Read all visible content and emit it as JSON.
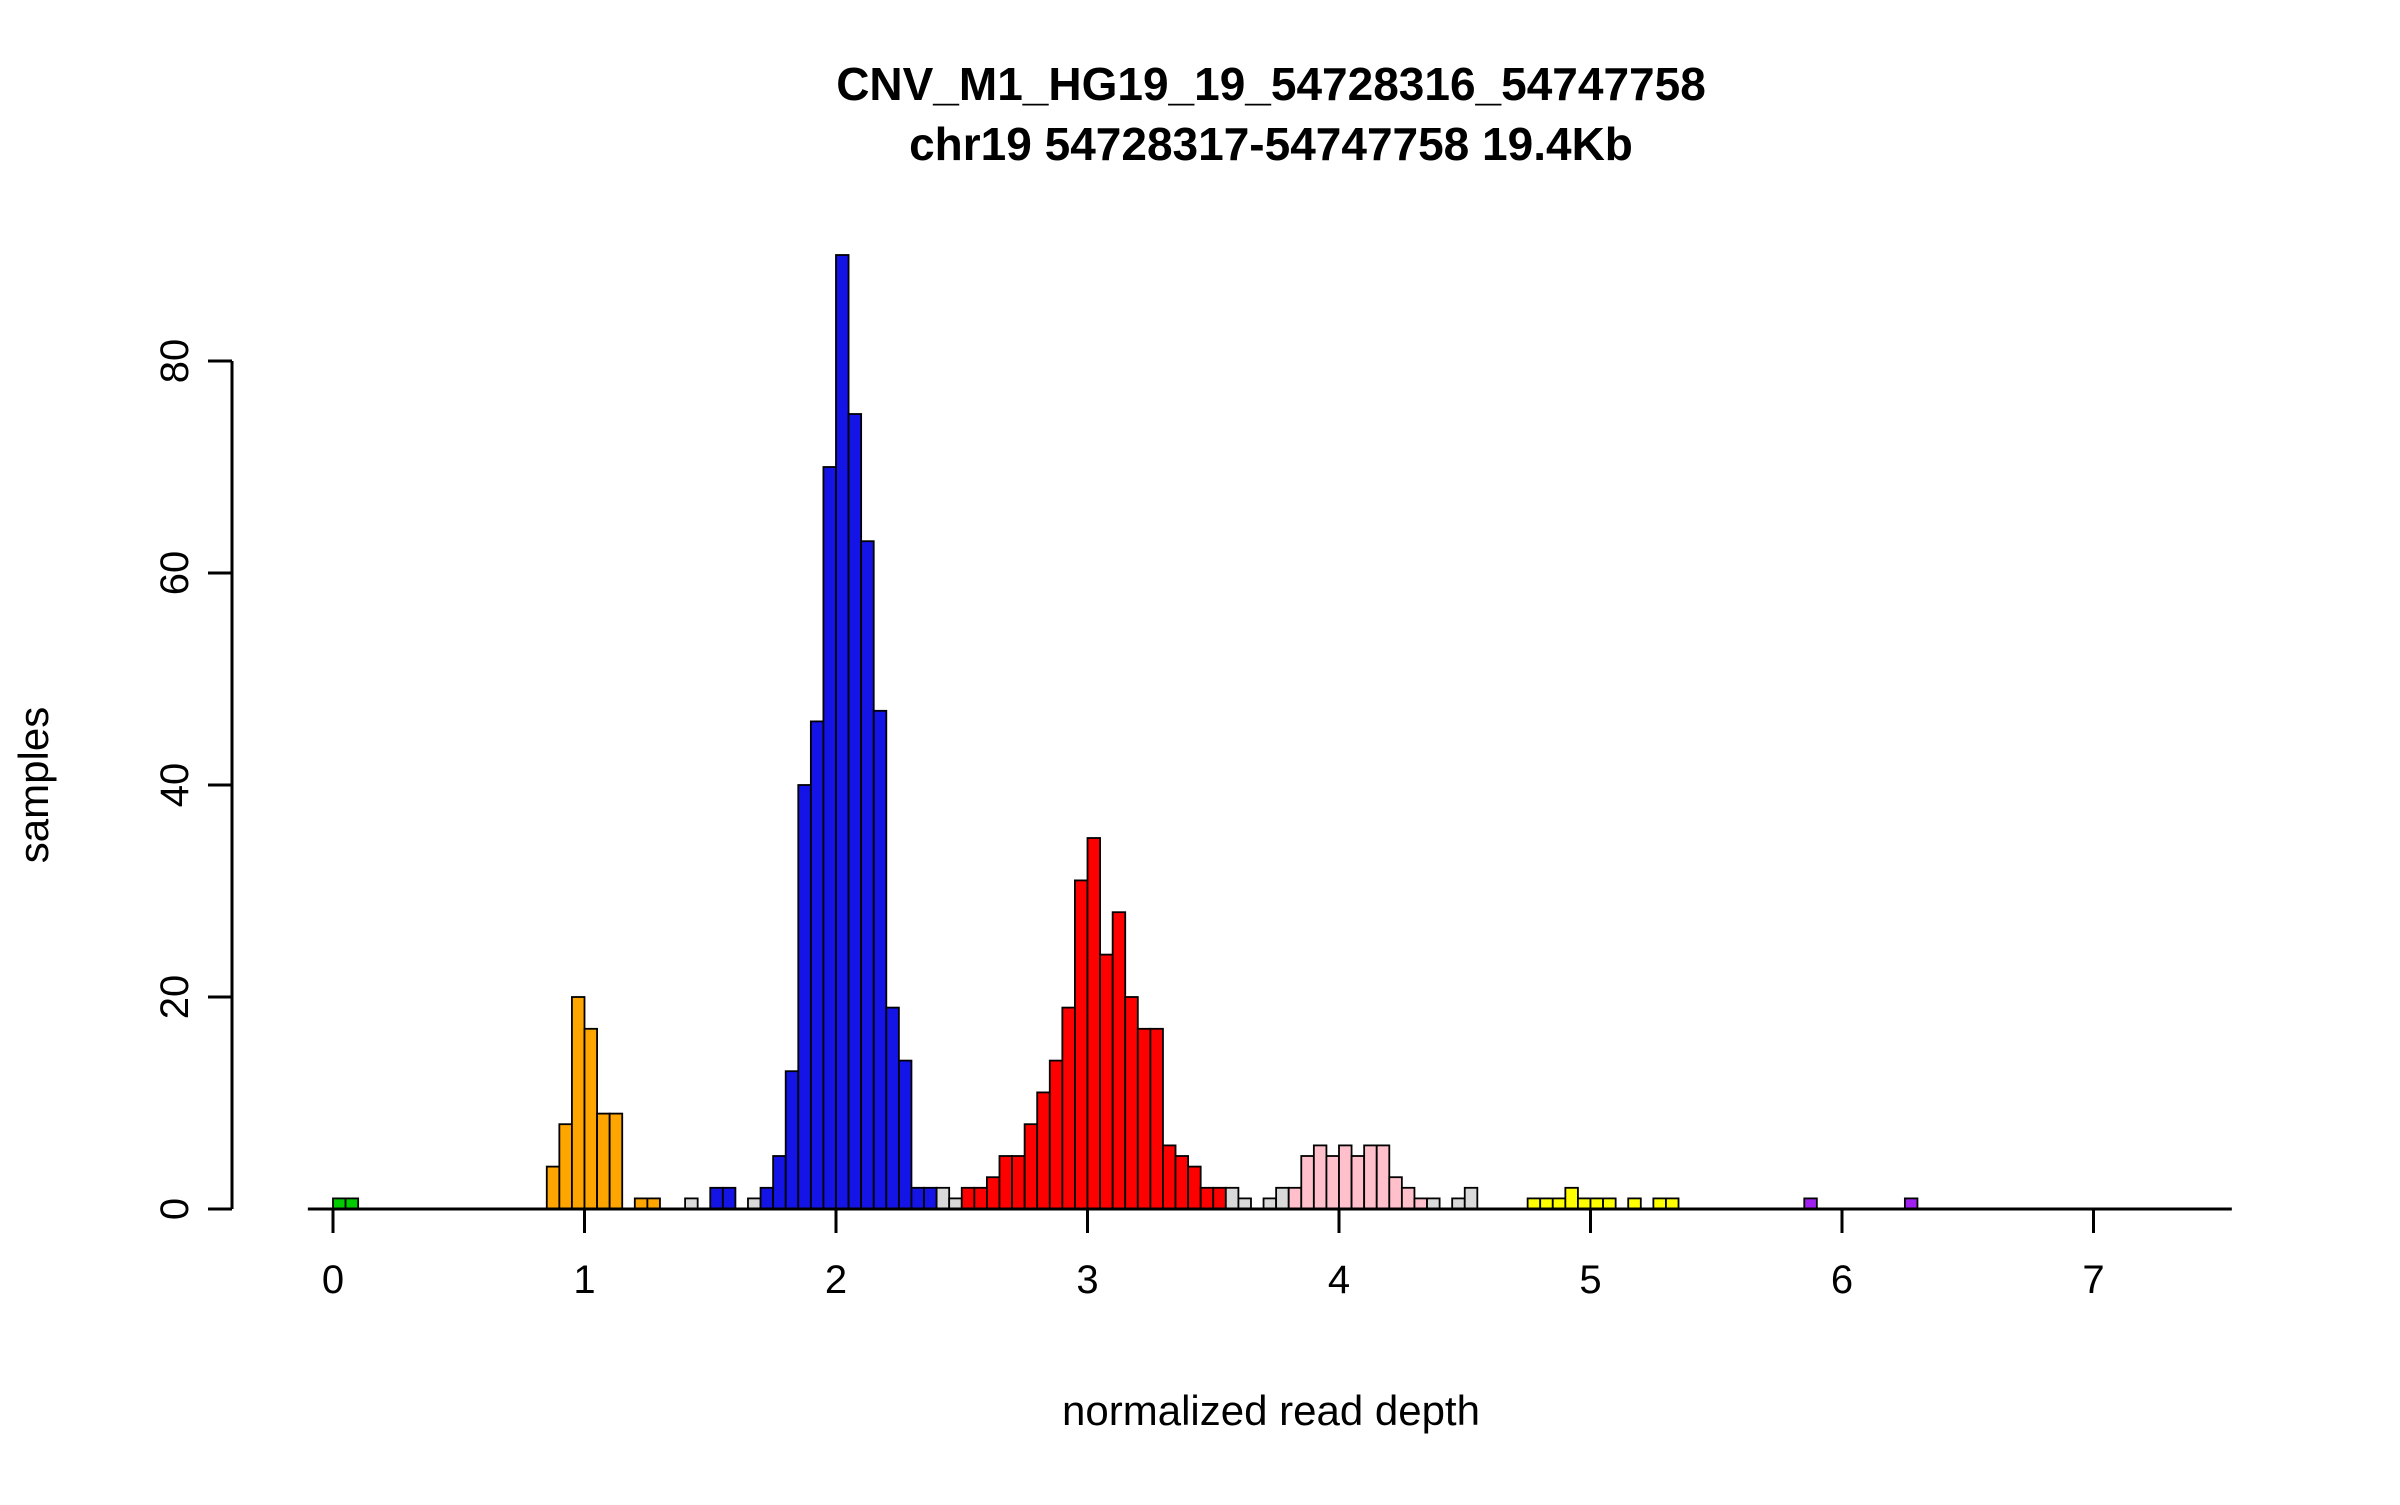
{
  "chart_data": {
    "type": "bar",
    "title": "CNV_M1_HG19_19_54728316_54747758",
    "subtitle": "chr19 54728317-54747758 19.4Kb",
    "xlabel": "normalized read depth",
    "ylabel": "samples",
    "xlim": [
      0,
      7.5
    ],
    "ylim": [
      0,
      90
    ],
    "xticks": [
      0,
      1,
      2,
      3,
      4,
      5,
      6,
      7
    ],
    "yticks": [
      0,
      20,
      40,
      60,
      80
    ],
    "bin_width": 0.05,
    "grid": false,
    "legend": "none",
    "colors": {
      "green": "#00CC00",
      "orange": "#FFA500",
      "blue": "#1414E6",
      "red": "#FF0000",
      "pink": "#FFC0CB",
      "gray": "#D9D9D9",
      "yellow": "#FFFF00",
      "purple": "#A020F0",
      "bar_border": "#000000",
      "axis": "#000000"
    },
    "bars": [
      {
        "x": 0.0,
        "h": 1,
        "c": "green"
      },
      {
        "x": 0.05,
        "h": 1,
        "c": "green"
      },
      {
        "x": 0.85,
        "h": 4,
        "c": "orange"
      },
      {
        "x": 0.9,
        "h": 8,
        "c": "orange"
      },
      {
        "x": 0.95,
        "h": 20,
        "c": "orange"
      },
      {
        "x": 1.0,
        "h": 17,
        "c": "orange"
      },
      {
        "x": 1.05,
        "h": 9,
        "c": "orange"
      },
      {
        "x": 1.1,
        "h": 9,
        "c": "orange"
      },
      {
        "x": 1.2,
        "h": 1,
        "c": "orange"
      },
      {
        "x": 1.25,
        "h": 1,
        "c": "orange"
      },
      {
        "x": 1.4,
        "h": 1,
        "c": "gray"
      },
      {
        "x": 1.5,
        "h": 2,
        "c": "blue"
      },
      {
        "x": 1.55,
        "h": 2,
        "c": "blue"
      },
      {
        "x": 1.65,
        "h": 1,
        "c": "gray"
      },
      {
        "x": 1.7,
        "h": 2,
        "c": "blue"
      },
      {
        "x": 1.75,
        "h": 5,
        "c": "blue"
      },
      {
        "x": 1.8,
        "h": 13,
        "c": "blue"
      },
      {
        "x": 1.85,
        "h": 40,
        "c": "blue"
      },
      {
        "x": 1.9,
        "h": 46,
        "c": "blue"
      },
      {
        "x": 1.95,
        "h": 70,
        "c": "blue"
      },
      {
        "x": 2.0,
        "h": 90,
        "c": "blue"
      },
      {
        "x": 2.05,
        "h": 75,
        "c": "blue"
      },
      {
        "x": 2.1,
        "h": 63,
        "c": "blue"
      },
      {
        "x": 2.15,
        "h": 47,
        "c": "blue"
      },
      {
        "x": 2.2,
        "h": 19,
        "c": "blue"
      },
      {
        "x": 2.25,
        "h": 14,
        "c": "blue"
      },
      {
        "x": 2.3,
        "h": 2,
        "c": "blue"
      },
      {
        "x": 2.35,
        "h": 2,
        "c": "blue"
      },
      {
        "x": 2.4,
        "h": 2,
        "c": "gray"
      },
      {
        "x": 2.45,
        "h": 1,
        "c": "gray"
      },
      {
        "x": 2.5,
        "h": 2,
        "c": "red"
      },
      {
        "x": 2.55,
        "h": 2,
        "c": "red"
      },
      {
        "x": 2.6,
        "h": 3,
        "c": "red"
      },
      {
        "x": 2.65,
        "h": 5,
        "c": "red"
      },
      {
        "x": 2.7,
        "h": 5,
        "c": "red"
      },
      {
        "x": 2.75,
        "h": 8,
        "c": "red"
      },
      {
        "x": 2.8,
        "h": 11,
        "c": "red"
      },
      {
        "x": 2.85,
        "h": 14,
        "c": "red"
      },
      {
        "x": 2.9,
        "h": 19,
        "c": "red"
      },
      {
        "x": 2.95,
        "h": 31,
        "c": "red"
      },
      {
        "x": 3.0,
        "h": 35,
        "c": "red"
      },
      {
        "x": 3.05,
        "h": 24,
        "c": "red"
      },
      {
        "x": 3.1,
        "h": 28,
        "c": "red"
      },
      {
        "x": 3.15,
        "h": 20,
        "c": "red"
      },
      {
        "x": 3.2,
        "h": 17,
        "c": "red"
      },
      {
        "x": 3.25,
        "h": 17,
        "c": "red"
      },
      {
        "x": 3.3,
        "h": 6,
        "c": "red"
      },
      {
        "x": 3.35,
        "h": 5,
        "c": "red"
      },
      {
        "x": 3.4,
        "h": 4,
        "c": "red"
      },
      {
        "x": 3.45,
        "h": 2,
        "c": "red"
      },
      {
        "x": 3.5,
        "h": 2,
        "c": "red"
      },
      {
        "x": 3.55,
        "h": 2,
        "c": "gray"
      },
      {
        "x": 3.6,
        "h": 1,
        "c": "gray"
      },
      {
        "x": 3.7,
        "h": 1,
        "c": "gray"
      },
      {
        "x": 3.75,
        "h": 2,
        "c": "gray"
      },
      {
        "x": 3.8,
        "h": 2,
        "c": "pink"
      },
      {
        "x": 3.85,
        "h": 5,
        "c": "pink"
      },
      {
        "x": 3.9,
        "h": 6,
        "c": "pink"
      },
      {
        "x": 3.95,
        "h": 5,
        "c": "pink"
      },
      {
        "x": 4.0,
        "h": 6,
        "c": "pink"
      },
      {
        "x": 4.05,
        "h": 5,
        "c": "pink"
      },
      {
        "x": 4.1,
        "h": 6,
        "c": "pink"
      },
      {
        "x": 4.15,
        "h": 6,
        "c": "pink"
      },
      {
        "x": 4.2,
        "h": 3,
        "c": "pink"
      },
      {
        "x": 4.25,
        "h": 2,
        "c": "pink"
      },
      {
        "x": 4.3,
        "h": 1,
        "c": "pink"
      },
      {
        "x": 4.35,
        "h": 1,
        "c": "gray"
      },
      {
        "x": 4.45,
        "h": 1,
        "c": "gray"
      },
      {
        "x": 4.5,
        "h": 2,
        "c": "gray"
      },
      {
        "x": 4.75,
        "h": 1,
        "c": "yellow"
      },
      {
        "x": 4.8,
        "h": 1,
        "c": "yellow"
      },
      {
        "x": 4.85,
        "h": 1,
        "c": "yellow"
      },
      {
        "x": 4.9,
        "h": 2,
        "c": "yellow"
      },
      {
        "x": 4.95,
        "h": 1,
        "c": "yellow"
      },
      {
        "x": 5.0,
        "h": 1,
        "c": "yellow"
      },
      {
        "x": 5.05,
        "h": 1,
        "c": "yellow"
      },
      {
        "x": 5.15,
        "h": 1,
        "c": "yellow"
      },
      {
        "x": 5.25,
        "h": 1,
        "c": "yellow"
      },
      {
        "x": 5.3,
        "h": 1,
        "c": "yellow"
      },
      {
        "x": 5.85,
        "h": 1,
        "c": "purple"
      },
      {
        "x": 6.25,
        "h": 1,
        "c": "purple"
      }
    ]
  }
}
